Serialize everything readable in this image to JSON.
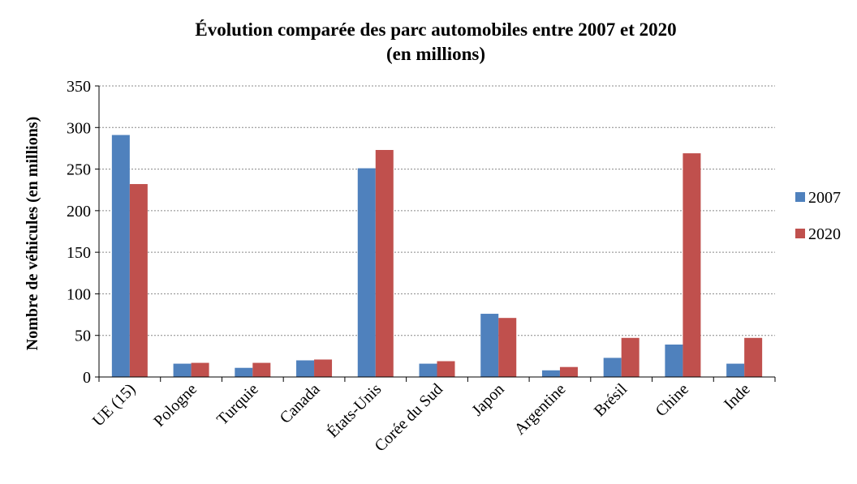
{
  "chart_data": {
    "type": "bar",
    "title": [
      "Évolution comparée des parc automobiles entre 2007 et 2020",
      "(en millions)"
    ],
    "y_label": "Nombre de véhicules (en millions)",
    "categories": [
      "UE (15)",
      "Pologne",
      "Turquie",
      "Canada",
      "États-Unis",
      "Corée du Sud",
      "Japon",
      "Argentine",
      "Brésil",
      "Chine",
      "Inde"
    ],
    "series": [
      {
        "name": "2007",
        "color": "#4f81bd",
        "values": [
          291,
          16,
          11,
          20,
          251,
          16,
          76,
          8,
          23,
          39,
          16
        ]
      },
      {
        "name": "2020",
        "color": "#c0504d",
        "values": [
          232,
          17,
          17,
          21,
          273,
          19,
          71,
          12,
          47,
          269,
          47
        ]
      }
    ],
    "ylim": [
      0,
      350
    ],
    "yticks": [
      0,
      50,
      100,
      150,
      200,
      250,
      300,
      350
    ],
    "grid": true,
    "legend": "right"
  }
}
